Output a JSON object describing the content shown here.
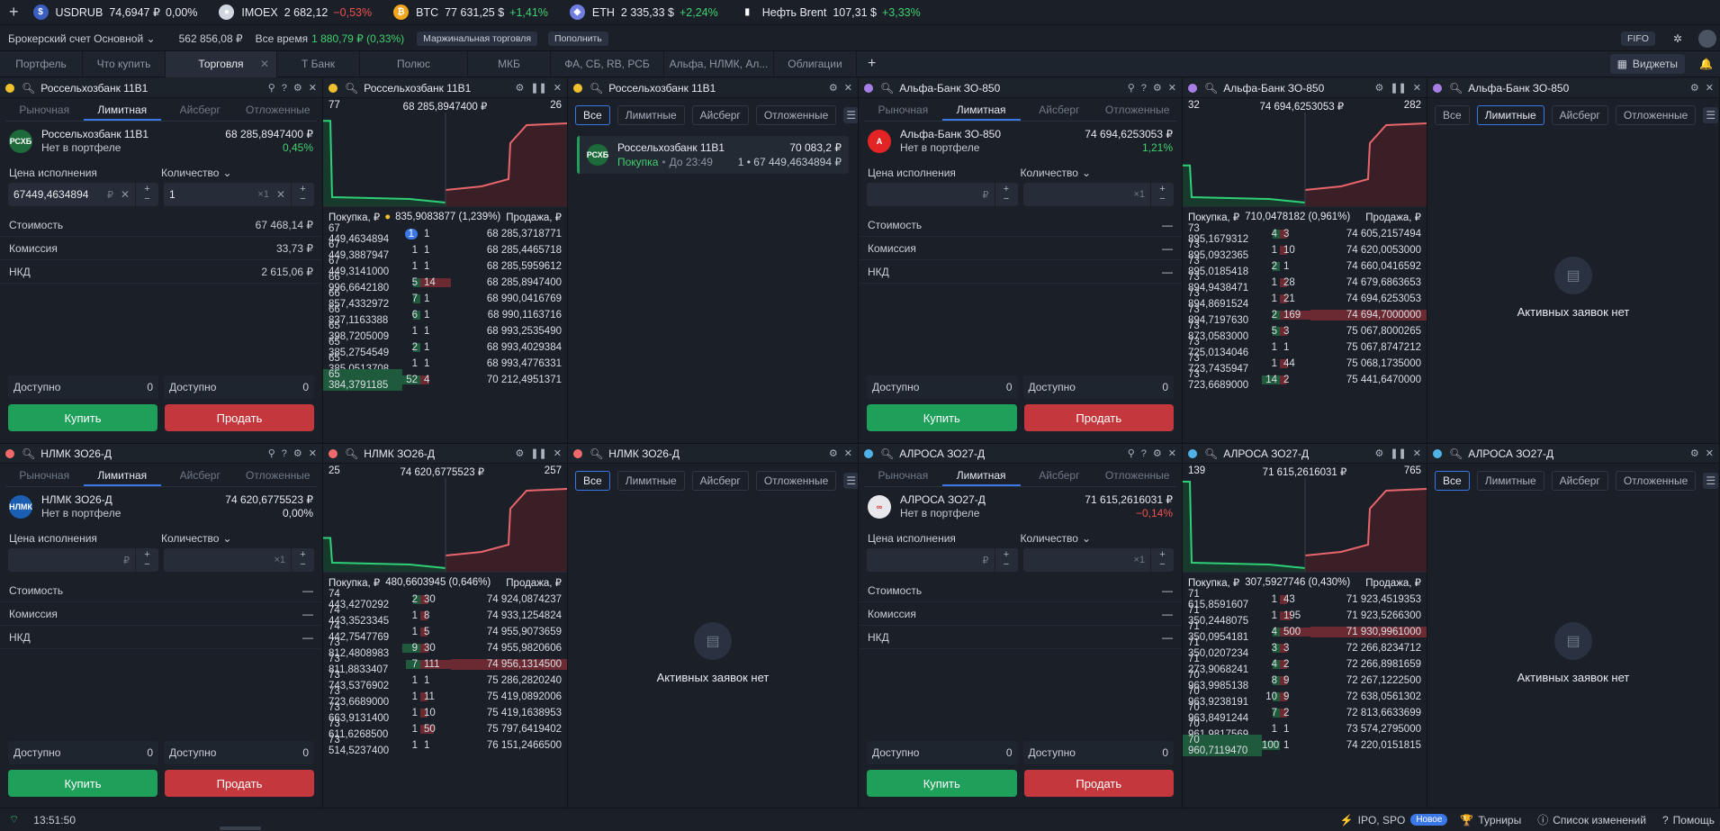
{
  "ticker": [
    {
      "name": "USDRUB",
      "value": "74,6947 ₽",
      "change": "0,00%",
      "dir": "flat",
      "color": "#3b5fbf",
      "glyph": "$"
    },
    {
      "name": "IMOEX",
      "value": "2 682,12",
      "change": "−0,53%",
      "dir": "neg",
      "color": "#d0d6df",
      "glyph": "●"
    },
    {
      "name": "BTC",
      "value": "77 631,25 $",
      "change": "+1,41%",
      "dir": "pos",
      "color": "#f2a51a",
      "glyph": "₿"
    },
    {
      "name": "ETH",
      "value": "2 335,33 $",
      "change": "+2,24%",
      "dir": "pos",
      "color": "#6f7ee0",
      "glyph": "◆"
    },
    {
      "name": "Нефть Brent",
      "value": "107,31 $",
      "change": "+3,33%",
      "dir": "pos",
      "color": "#1b2028",
      "glyph": "▮"
    }
  ],
  "account": {
    "name": "Брокерский счет Основной",
    "balance": "562 856,08 ₽",
    "alltime_label": "Все время",
    "alltime_value": "1 880,79 ₽ (0,33%)",
    "margin_btn": "Маржинальная торговля",
    "topup_btn": "Пополнить",
    "fifo": "FIFO"
  },
  "workspace_tabs": [
    "Портфель",
    "Что купить",
    "Торговля",
    "Т Банк",
    "Полюс",
    "МКБ",
    "ФА, СБ, RB, РСБ",
    "Альфа, НЛМК, Ал...",
    "Облигации"
  ],
  "widgets_label": "Виджеты",
  "common": {
    "order_tabs": [
      "Рыночная",
      "Лимитная",
      "Айсберг",
      "Отложенные"
    ],
    "filter_tabs": [
      "Все",
      "Лимитные",
      "Айсберг",
      "Отложенные"
    ],
    "price_label": "Цена исполнения",
    "qty_label": "Количество",
    "cost": "Стоимость",
    "commission": "Комиссия",
    "nkd": "НКД",
    "available": "Доступно",
    "buy": "Купить",
    "sell": "Продать",
    "not_in_portfolio": "Нет в портфеле",
    "ob_buy": "Покупка, ₽",
    "ob_sell": "Продажа, ₽",
    "no_orders": "Активных заявок нет",
    "dash": "—",
    "rub": "₽",
    "x1": "×1",
    "zero": "0"
  },
  "instruments": [
    {
      "name": "Россельхозбанк 11В1",
      "dot": "#f2c12e",
      "logo_color": "#1d6b3a",
      "logo_text": "РСХБ",
      "price": "68 285,8947400 ₽",
      "change": "0,45%",
      "dir": "pos",
      "price_input": "67449,4634894",
      "qty_input": "1",
      "cost_val": "67 468,14 ₽",
      "comm_val": "33,73 ₽",
      "nkd_val": "2 615,06 ₽",
      "chart_left": "77",
      "chart_mid": "68 285,8947400 ₽",
      "chart_right": "26",
      "spread": "835,9083877 (1,239%)",
      "ob": [
        [
          "67 449,4634894",
          "1",
          "1",
          "68 285,3718771"
        ],
        [
          "67 449,3887947",
          "1",
          "1",
          "68 285,4465718"
        ],
        [
          "67 449,3141000",
          "1",
          "1",
          "68 285,5959612"
        ],
        [
          "66 996,6642180",
          "5",
          "14",
          "68 285,8947400"
        ],
        [
          "66 857,4332972",
          "7",
          "1",
          "68 990,0416769"
        ],
        [
          "66 837,1163388",
          "6",
          "1",
          "68 990,1163716"
        ],
        [
          "65 398,7205009",
          "1",
          "1",
          "68 993,2535490"
        ],
        [
          "65 385,2754549",
          "2",
          "1",
          "68 993,4029384"
        ],
        [
          "65 385,0513708",
          "1",
          "1",
          "68 993,4776331"
        ],
        [
          "65 384,3791185",
          "52",
          "4",
          "70 212,4951371"
        ]
      ],
      "order_card": {
        "name": "Россельхозбанк 11В1",
        "side": "Покупка",
        "until": "До 23:49",
        "amount": "70 083,2 ₽",
        "detail": "1 • 67 449,4634894 ₽"
      }
    },
    {
      "name": "Альфа-Банк ЗО-850",
      "dot": "#a77ee6",
      "logo_color": "#e32424",
      "logo_text": "А",
      "price": "74 694,6253053 ₽",
      "change": "1,21%",
      "dir": "pos",
      "chart_left": "32",
      "chart_mid": "74 694,6253053 ₽",
      "chart_right": "282",
      "spread": "710,0478182 (0,961%)",
      "ob": [
        [
          "73 895,1679312",
          "4",
          "3",
          "74 605,2157494"
        ],
        [
          "73 895,0932365",
          "1",
          "10",
          "74 620,0053000"
        ],
        [
          "73 895,0185418",
          "2",
          "1",
          "74 660,0416592"
        ],
        [
          "73 894,9438471",
          "1",
          "28",
          "74 679,6863653"
        ],
        [
          "73 894,8691524",
          "1",
          "21",
          "74 694,6253053"
        ],
        [
          "73 894,7197630",
          "2",
          "169",
          "74 694,7000000"
        ],
        [
          "73 873,0583000",
          "5",
          "3",
          "75 067,8000265"
        ],
        [
          "73 725,0134046",
          "1",
          "1",
          "75 067,8747212"
        ],
        [
          "73 723,7435947",
          "1",
          "44",
          "75 068,1735000"
        ],
        [
          "73 723,6689000",
          "14",
          "2",
          "75 441,6470000"
        ]
      ]
    },
    {
      "name": "НЛМК ЗО26-Д",
      "dot": "#ef6b6b",
      "logo_color": "#1a5fb4",
      "logo_text": "НЛМК",
      "price": "74 620,6775523 ₽",
      "change": "0,00%",
      "dir": "flat",
      "chart_left": "25",
      "chart_mid": "74 620,6775523 ₽",
      "chart_right": "257",
      "spread": "480,6603945 (0,646%)",
      "ob": [
        [
          "74 443,4270292",
          "2",
          "30",
          "74 924,0874237"
        ],
        [
          "74 443,3523345",
          "1",
          "8",
          "74 933,1254824"
        ],
        [
          "74 442,7547769",
          "1",
          "5",
          "74 955,9073659"
        ],
        [
          "73 812,4808983",
          "9",
          "30",
          "74 955,9820606"
        ],
        [
          "73 811,8833407",
          "7",
          "111",
          "74 956,1314500"
        ],
        [
          "73 743,5376902",
          "1",
          "1",
          "75 286,2820240"
        ],
        [
          "73 723,6689000",
          "1",
          "11",
          "75 419,0892006"
        ],
        [
          "73 663,9131400",
          "1",
          "10",
          "75 419,1638953"
        ],
        [
          "73 611,6268500",
          "1",
          "50",
          "75 797,6419402"
        ],
        [
          "73 514,5237400",
          "1",
          "1",
          "76 151,2466500"
        ]
      ]
    },
    {
      "name": "АЛРОСА ЗО27-Д",
      "dot": "#4fb3e8",
      "logo_color": "#e8e8ec",
      "logo_text": "∞",
      "price": "71 615,2616031 ₽",
      "change": "−0,14%",
      "dir": "neg",
      "chart_left": "139",
      "chart_mid": "71 615,2616031 ₽",
      "chart_right": "765",
      "spread": "307,5927746 (0,430%)",
      "ob": [
        [
          "71 615,8591607",
          "1",
          "43",
          "71 923,4519353"
        ],
        [
          "71 350,2448075",
          "1",
          "195",
          "71 923,5266300"
        ],
        [
          "71 350,0954181",
          "4",
          "500",
          "71 930,9961000"
        ],
        [
          "71 350,0207234",
          "3",
          "3",
          "72 266,8234712"
        ],
        [
          "71 273,9068241",
          "4",
          "2",
          "72 266,8981659"
        ],
        [
          "70 963,9985138",
          "8",
          "9",
          "72 267,1222500"
        ],
        [
          "70 963,9238191",
          "10",
          "9",
          "72 638,0561302"
        ],
        [
          "70 963,8491244",
          "7",
          "2",
          "72 813,6633699"
        ],
        [
          "70 961,9817569",
          "1",
          "1",
          "73 574,2795000"
        ],
        [
          "70 960,7119470",
          "100",
          "1",
          "74 220,0151815"
        ]
      ]
    }
  ],
  "status": {
    "time": "13:51:50",
    "ipo": "IPO, SPO",
    "new_badge": "Новое",
    "tournaments": "Турниры",
    "changelog": "Список изменений",
    "help": "Помощь"
  }
}
